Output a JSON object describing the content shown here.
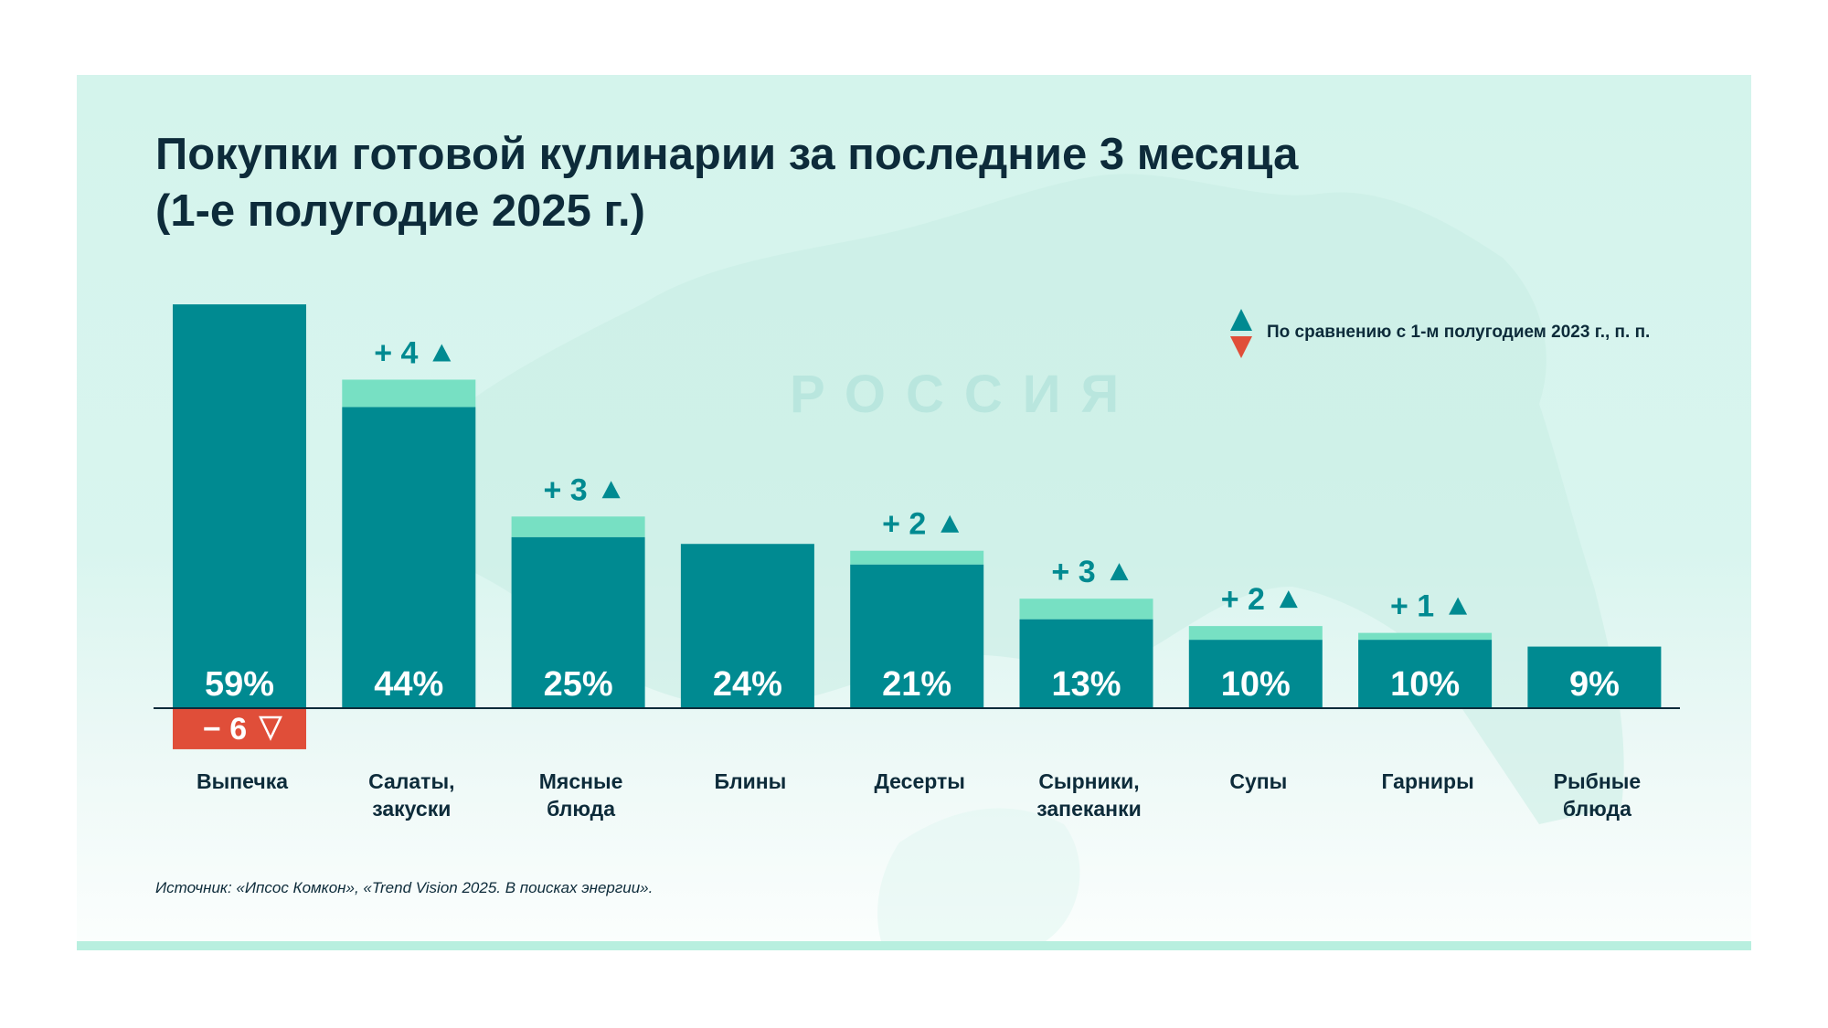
{
  "header": {
    "title_line1": "Покупки готовой кулинарии за последние 3 месяца",
    "title_line2": "(1-е полугодие 2025 г.)"
  },
  "watermark": "РОССИЯ",
  "legend": {
    "text": "По сравнению с 1-м полугодием 2023 г., п. п.",
    "up_icon": "triangle-up-icon",
    "down_icon": "triangle-down-icon"
  },
  "source": "Источник: «Ипсос Комкон», «Trend Vision 2025. В поисках энергии».",
  "colors": {
    "bar": "#008a91",
    "increase": "#77e0c3",
    "decrease": "#e04e39",
    "text": "#0d2b3a",
    "accent_stripe": "#b8efdf"
  },
  "chart_data": {
    "type": "bar",
    "title": "Покупки готовой кулинарии за последние 3 месяца (1-е полугодие 2025 г.)",
    "xlabel": "",
    "ylabel": "",
    "unit": "%",
    "ylim": [
      0,
      60
    ],
    "grid": false,
    "legend_position": "top-right",
    "categories": [
      [
        "Выпечка"
      ],
      [
        "Салаты,",
        "закуски"
      ],
      [
        "Мясные",
        "блюда"
      ],
      [
        "Блины"
      ],
      [
        "Десерты"
      ],
      [
        "Сырники,",
        "запеканки"
      ],
      [
        "Супы"
      ],
      [
        "Гарниры"
      ],
      [
        "Рыбные",
        "блюда"
      ]
    ],
    "values": [
      59,
      44,
      25,
      24,
      21,
      13,
      10,
      10,
      9
    ],
    "value_labels": [
      "59%",
      "44%",
      "25%",
      "24%",
      "21%",
      "13%",
      "10%",
      "10%",
      "9%"
    ],
    "change_vs_h1_2023_pp": [
      -6,
      4,
      3,
      null,
      2,
      3,
      2,
      1,
      null
    ],
    "change_labels": [
      "− 6",
      "+ 4",
      "+ 3",
      null,
      "+ 2",
      "+ 3",
      "+ 2",
      "+ 1",
      null
    ]
  }
}
